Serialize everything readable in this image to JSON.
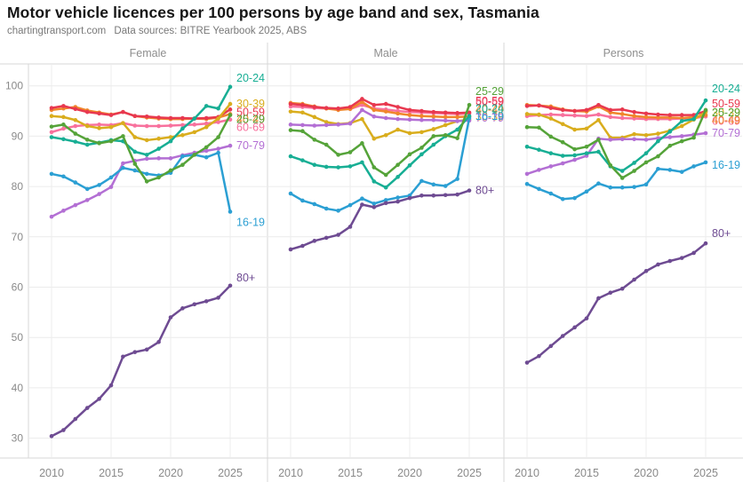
{
  "header": {
    "title": "Motor vehicle licences per 100 persons by age band and sex, Tasmania",
    "watermark": "chartingtransport.com",
    "source_note": "Data sources: BITRE Yearbook 2025, ABS"
  },
  "chart_data": {
    "type": "line",
    "title": "Motor vehicle licences per 100 persons by age band and sex, Tasmania",
    "xlabel": "",
    "ylabel": "Motor vehicle licences per 100 persons",
    "x": [
      2010,
      2011,
      2012,
      2013,
      2014,
      2015,
      2016,
      2017,
      2018,
      2019,
      2020,
      2021,
      2022,
      2023,
      2024,
      2025
    ],
    "x_ticks": [
      2010,
      2015,
      2020,
      2025
    ],
    "y_ticks": [
      30,
      40,
      50,
      60,
      70,
      80,
      90,
      100
    ],
    "y_range": [
      27,
      104.5
    ],
    "grid": true,
    "legend_position": "direct-labels-at-line-ends",
    "bands": [
      {
        "id": "60-69",
        "label": "60-69",
        "color": "#f8719d"
      },
      {
        "id": "40-49",
        "label": "40-49",
        "color": "#f0862c"
      },
      {
        "id": "50-59",
        "label": "50-59",
        "color": "#e8384f"
      },
      {
        "id": "30-39",
        "label": "30-39",
        "color": "#d9ad1d"
      },
      {
        "id": "70-79",
        "label": "70-79",
        "color": "#b36fd4"
      },
      {
        "id": "16-19",
        "label": "16-19",
        "color": "#2b9fd3"
      },
      {
        "id": "20-24",
        "label": "20-24",
        "color": "#17ae94"
      },
      {
        "id": "25-29",
        "label": "25-29",
        "color": "#55a339"
      },
      {
        "id": "80+",
        "label": "80+",
        "color": "#6e4b92"
      }
    ],
    "panels": [
      {
        "title": "Female",
        "series": {
          "60-69": {
            "values": [
              90.8,
              91.5,
              92.0,
              92.2,
              92.3,
              92.2,
              92.6,
              92.1,
              92.0,
              92.0,
              92.1,
              92.2,
              92.3,
              92.5,
              92.8,
              93.3
            ],
            "label_dy": 9
          },
          "40-49": {
            "values": [
              95.2,
              95.5,
              95.8,
              95.1,
              94.7,
              94.3,
              94.8,
              94.0,
              93.7,
              93.5,
              93.4,
              93.4,
              93.5,
              93.4,
              93.7,
              94.4
            ],
            "label_dy": 6
          },
          "50-59": {
            "values": [
              95.6,
              96.0,
              95.4,
              94.8,
              94.5,
              94.2,
              94.8,
              94.0,
              93.9,
              93.7,
              93.6,
              93.6,
              93.5,
              93.6,
              93.8,
              95.3
            ],
            "label_dy": 3
          },
          "30-39": {
            "values": [
              94.0,
              93.8,
              93.2,
              92.0,
              91.6,
              91.8,
              92.6,
              89.8,
              89.2,
              89.5,
              89.8,
              90.2,
              90.8,
              91.8,
              93.5,
              96.4
            ],
            "label_dy": 0
          },
          "70-79": {
            "values": [
              74.0,
              75.2,
              76.3,
              77.3,
              78.5,
              79.9,
              84.6,
              85.1,
              85.5,
              85.6,
              85.6,
              86.2,
              86.7,
              87.1,
              87.5,
              88.1
            ],
            "label_dy": 0
          },
          "16-19": {
            "values": [
              82.5,
              82.0,
              80.8,
              79.5,
              80.3,
              81.8,
              83.7,
              83.2,
              82.5,
              82.2,
              82.7,
              86.0,
              86.3,
              85.8,
              86.7,
              75.0
            ],
            "label_dy": 12
          },
          "20-24": {
            "values": [
              89.8,
              89.4,
              88.9,
              88.3,
              88.7,
              89.2,
              89.0,
              86.9,
              86.3,
              87.5,
              89.0,
              91.5,
              93.5,
              96.0,
              95.5,
              99.8
            ],
            "label_dy": -10
          },
          "25-29": {
            "values": [
              91.9,
              92.3,
              90.5,
              89.3,
              88.6,
              89.0,
              90.0,
              84.5,
              81.0,
              81.8,
              83.2,
              84.3,
              86.3,
              87.8,
              89.8,
              94.2
            ],
            "label_dy": 5
          },
          "80+": {
            "values": [
              30.4,
              31.6,
              33.8,
              36.0,
              37.8,
              40.5,
              46.2,
              47.1,
              47.6,
              49.1,
              54.0,
              55.8,
              56.6,
              57.2,
              57.9,
              60.3
            ],
            "label_dy": -9
          }
        }
      },
      {
        "title": "Male",
        "series": {
          "60-69": {
            "values": [
              95.9,
              95.8,
              95.6,
              95.5,
              95.4,
              95.4,
              96.2,
              95.5,
              95.3,
              95.0,
              94.8,
              94.7,
              94.6,
              94.5,
              94.4,
              94.5
            ],
            "label_dy": -13
          },
          "40-49": {
            "values": [
              96.6,
              96.4,
              95.9,
              95.5,
              95.2,
              95.4,
              96.8,
              95.2,
              94.9,
              94.5,
              94.2,
              94.0,
              93.9,
              93.8,
              93.8,
              93.9
            ],
            "label_dy": -8
          },
          "50-59": {
            "values": [
              96.4,
              96.2,
              95.8,
              95.6,
              95.5,
              95.8,
              97.4,
              96.2,
              96.4,
              95.8,
              95.2,
              95.0,
              94.8,
              94.7,
              94.6,
              94.7
            ],
            "label_dy": -13
          },
          "30-39": {
            "values": [
              94.9,
              94.7,
              93.8,
              92.8,
              92.4,
              92.6,
              93.4,
              89.5,
              90.2,
              91.3,
              90.6,
              90.8,
              91.4,
              92.2,
              93.0,
              93.3
            ],
            "label_dy": -3
          },
          "70-79": {
            "values": [
              92.3,
              92.2,
              92.1,
              92.2,
              92.3,
              92.5,
              95.2,
              93.9,
              93.6,
              93.4,
              93.3,
              93.2,
              93.2,
              93.1,
              93.0,
              93.1
            ],
            "label_dy": -3
          },
          "16-19": {
            "values": [
              78.6,
              77.2,
              76.5,
              75.6,
              75.2,
              76.3,
              77.6,
              76.6,
              77.3,
              77.8,
              78.2,
              81.1,
              80.4,
              80.1,
              81.5,
              93.6
            ],
            "label_dy": -2
          },
          "20-24": {
            "values": [
              86.0,
              85.2,
              84.3,
              83.9,
              83.8,
              84.0,
              84.8,
              81.0,
              79.8,
              81.9,
              84.2,
              86.4,
              88.3,
              90.0,
              91.3,
              94.0
            ],
            "label_dy": -8
          },
          "25-29": {
            "values": [
              91.2,
              91.0,
              89.3,
              88.3,
              86.3,
              86.8,
              88.6,
              83.8,
              82.3,
              84.3,
              86.4,
              87.7,
              90.0,
              90.2,
              89.6,
              96.2
            ],
            "label_dy": -15
          },
          "80+": {
            "values": [
              67.5,
              68.2,
              69.2,
              69.8,
              70.4,
              72.0,
              76.4,
              75.9,
              76.7,
              77.0,
              77.7,
              78.2,
              78.2,
              78.3,
              78.4,
              79.2
            ],
            "label_dy": 0
          }
        }
      },
      {
        "title": "Persons",
        "series": {
          "60-69": {
            "values": [
              94.0,
              94.2,
              94.3,
              94.2,
              94.1,
              94.0,
              94.3,
              93.8,
              93.6,
              93.5,
              93.4,
              93.4,
              93.4,
              93.5,
              93.6,
              93.9
            ],
            "label_dy": 5
          },
          "40-49": {
            "values": [
              96.2,
              96.1,
              95.9,
              95.3,
              95.0,
              94.9,
              95.9,
              94.7,
              94.4,
              94.0,
              93.8,
              93.7,
              93.7,
              93.6,
              93.8,
              94.2
            ],
            "label_dy": 6
          },
          "50-59": {
            "values": [
              96.0,
              96.1,
              95.6,
              95.2,
              95.0,
              95.2,
              96.2,
              95.2,
              95.3,
              94.8,
              94.5,
              94.3,
              94.2,
              94.2,
              94.2,
              95.0
            ],
            "label_dy": -8
          },
          "30-39": {
            "values": [
              94.4,
              94.3,
              93.5,
              92.4,
              91.3,
              91.5,
              93.2,
              89.7,
              89.7,
              90.4,
              90.2,
              90.5,
              91.1,
              92.0,
              93.3,
              94.8
            ],
            "label_dy": 1
          },
          "70-79": {
            "values": [
              82.5,
              83.3,
              84.0,
              84.6,
              85.3,
              86.1,
              89.5,
              89.3,
              89.4,
              89.4,
              89.3,
              89.6,
              89.8,
              90.0,
              90.3,
              90.6
            ],
            "label_dy": 0
          },
          "16-19": {
            "values": [
              80.5,
              79.5,
              78.6,
              77.5,
              77.7,
              79.0,
              80.6,
              79.8,
              79.8,
              79.9,
              80.4,
              83.5,
              83.3,
              82.9,
              84.0,
              84.8
            ],
            "label_dy": 3
          },
          "20-24": {
            "values": [
              87.9,
              87.3,
              86.6,
              86.1,
              86.2,
              86.6,
              86.9,
              84.0,
              83.1,
              84.7,
              86.6,
              89.0,
              90.9,
              93.0,
              93.4,
              97.1
            ],
            "label_dy": -13
          },
          "25-29": {
            "values": [
              91.8,
              91.7,
              89.9,
              88.8,
              87.4,
              87.9,
              89.3,
              84.2,
              81.7,
              83.1,
              84.8,
              86.0,
              88.1,
              89.0,
              89.7,
              95.2
            ],
            "label_dy": 3
          },
          "80+": {
            "values": [
              45.0,
              46.3,
              48.3,
              50.3,
              52.0,
              53.8,
              57.8,
              58.9,
              59.7,
              61.5,
              63.2,
              64.5,
              65.2,
              65.8,
              66.8,
              68.7
            ],
            "label_dy": -11
          }
        }
      }
    ]
  }
}
